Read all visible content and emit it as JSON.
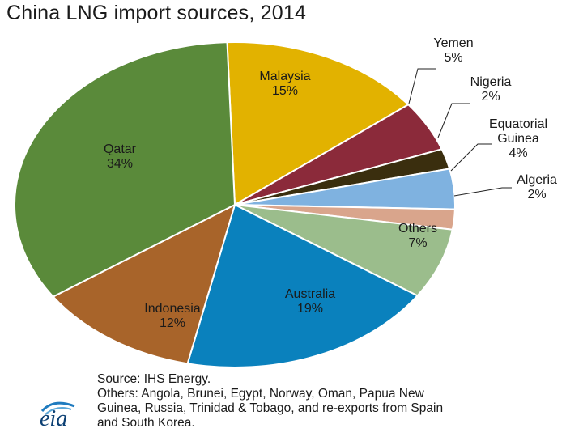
{
  "chart_data": {
    "type": "pie",
    "title": "China LNG import sources, 2014",
    "slices": [
      {
        "label": "Malaysia",
        "value": 15,
        "display": "15%",
        "color": "#e2b200",
        "label_lines": [
          "Malaysia",
          "15%"
        ]
      },
      {
        "label": "Yemen",
        "value": 5,
        "display": "5%",
        "color": "#8b2a3a",
        "label_lines": [
          "Yemen",
          "5%"
        ]
      },
      {
        "label": "Nigeria",
        "value": 2,
        "display": "2%",
        "color": "#3a2e0e",
        "label_lines": [
          "Nigeria",
          "2%"
        ]
      },
      {
        "label": "Equatorial Guinea",
        "value": 4,
        "display": "4%",
        "color": "#7fb2e0",
        "label_lines": [
          "Equatorial",
          "Guinea",
          "4%"
        ]
      },
      {
        "label": "Algeria",
        "value": 2,
        "display": "2%",
        "color": "#d9a58c",
        "label_lines": [
          "Algeria",
          "2%"
        ]
      },
      {
        "label": "Others",
        "value": 7,
        "display": "7%",
        "color": "#9bbd8c",
        "label_lines": [
          "Others",
          "7%"
        ]
      },
      {
        "label": "Australia",
        "value": 19,
        "display": "19%",
        "color": "#0a81bd",
        "label_lines": [
          "Australia",
          "19%"
        ]
      },
      {
        "label": "Indonesia",
        "value": 12,
        "display": "12%",
        "color": "#a8642a",
        "label_lines": [
          "Indonesia",
          "12%"
        ]
      },
      {
        "label": "Qatar",
        "value": 34,
        "display": "34%",
        "color": "#5a8a3a",
        "label_lines": [
          "Qatar",
          "34%"
        ]
      }
    ]
  },
  "footnote": {
    "lines": [
      "Source: IHS Energy.",
      "Others: Angola, Brunei, Egypt, Norway, Oman, Papua New",
      "Guinea, Russia, Trinidad & Tobago, and re-exports from Spain",
      "and South Korea."
    ]
  },
  "logo": {
    "text": "eia"
  }
}
